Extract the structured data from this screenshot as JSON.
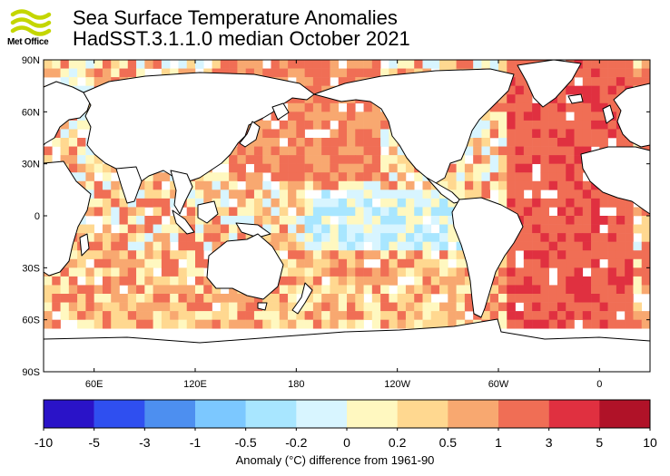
{
  "logo": {
    "name": "Met Office",
    "icon": "wave-lines-icon",
    "color": "#c4d600"
  },
  "title": {
    "line1": "Sea Surface Temperature Anomalies",
    "line2": "HadSST.3.1.1.0 median October 2021"
  },
  "map": {
    "projection": "equirectangular, centered on 180",
    "lat_labels": [
      "90N",
      "60N",
      "30N",
      "0",
      "30S",
      "60S",
      "90S"
    ],
    "lon_labels": [
      "60E",
      "120E",
      "180",
      "120W",
      "60W",
      "0"
    ],
    "grid_resolution_deg": 5
  },
  "colorbar": {
    "ticks": [
      "-10",
      "-5",
      "-3",
      "-1",
      "-0.5",
      "-0.2",
      "0",
      "0.2",
      "0.5",
      "1",
      "3",
      "5",
      "10"
    ],
    "colors": [
      "#2a13c8",
      "#2f4ff0",
      "#4d8ff0",
      "#7cc8ff",
      "#a8e6ff",
      "#d8f5ff",
      "#fff8c0",
      "#ffd890",
      "#f8a870",
      "#f06e55",
      "#e03040",
      "#b01228"
    ],
    "label": "Anomaly (°C) difference from 1961-90"
  },
  "colors": {
    "land": "#ffffff",
    "coast": "#000000",
    "missing": "#ffffff"
  }
}
